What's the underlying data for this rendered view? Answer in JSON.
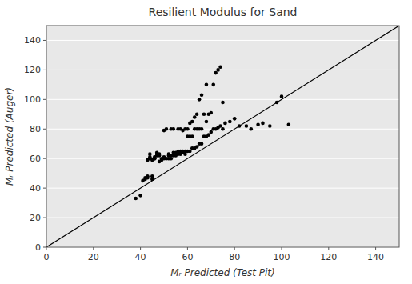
{
  "chart_data": {
    "type": "scatter",
    "title": "Resilient Modulus for Sand",
    "xlabel": "Mᵣ Predicted (Test Pit)",
    "ylabel": "Mᵣ Predicted (Auger)",
    "xlim": [
      0,
      150
    ],
    "ylim": [
      0,
      150
    ],
    "xticks": [
      0,
      20,
      40,
      60,
      80,
      100,
      120,
      140
    ],
    "yticks": [
      0,
      20,
      40,
      60,
      80,
      100,
      120,
      140
    ],
    "grid": "y",
    "series": [
      {
        "type": "scatter",
        "marker": "point",
        "color": "black",
        "x": [
          38,
          40,
          41,
          42,
          42,
          43,
          43,
          43,
          44,
          44,
          44,
          45,
          45,
          45,
          46,
          46,
          46,
          47,
          47,
          47,
          48,
          48,
          48,
          49,
          49,
          50,
          50,
          50,
          51,
          51,
          52,
          52,
          52,
          53,
          53,
          53,
          54,
          54,
          54,
          55,
          55,
          55,
          56,
          56,
          56,
          57,
          57,
          57,
          57,
          58,
          58,
          58,
          59,
          59,
          59,
          60,
          60,
          60,
          61,
          61,
          61,
          62,
          62,
          62,
          63,
          63,
          63,
          64,
          64,
          64,
          65,
          65,
          65,
          66,
          66,
          66,
          67,
          67,
          68,
          68,
          68,
          69,
          69,
          70,
          70,
          71,
          71,
          72,
          72,
          73,
          73,
          74,
          74,
          75,
          75,
          76,
          78,
          80,
          82,
          85,
          87,
          90,
          92,
          95,
          98,
          100,
          103
        ],
        "values": [
          33,
          35,
          45,
          46,
          47,
          48,
          47,
          59,
          60,
          61,
          63,
          46,
          48,
          59,
          60,
          60,
          61,
          62,
          63,
          64,
          58,
          62,
          63,
          59,
          60,
          60,
          61,
          79,
          60,
          80,
          60,
          62,
          63,
          60,
          62,
          80,
          62,
          64,
          80,
          62,
          63,
          64,
          63,
          65,
          80,
          63,
          64,
          65,
          80,
          64,
          65,
          79,
          63,
          65,
          80,
          65,
          75,
          80,
          65,
          75,
          84,
          67,
          75,
          85,
          67,
          80,
          88,
          68,
          80,
          90,
          70,
          80,
          100,
          70,
          80,
          103,
          75,
          90,
          75,
          85,
          110,
          76,
          90,
          78,
          91,
          80,
          110,
          80,
          118,
          81,
          120,
          82,
          122,
          80,
          98,
          84,
          85,
          87,
          82,
          82,
          80,
          83,
          84,
          82,
          98,
          102,
          83
        ]
      },
      {
        "type": "line",
        "line_style": "solid",
        "color": "black",
        "x": [
          0,
          150
        ],
        "values": [
          0,
          150
        ]
      }
    ]
  }
}
